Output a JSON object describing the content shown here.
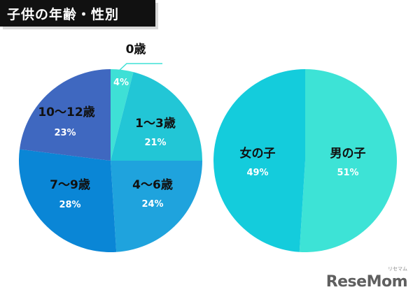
{
  "title": "子供の年齢・性別",
  "logo": "ReseMom",
  "logo_sub": "リセマム",
  "chart_data": [
    {
      "type": "pie",
      "name": "age",
      "categories": [
        "0歳",
        "1〜3歳",
        "4〜6歳",
        "7〜9歳",
        "10〜12歳"
      ],
      "values": [
        4,
        21,
        24,
        28,
        23
      ],
      "value_labels": [
        "4%",
        "21%",
        "24%",
        "28%",
        "23%"
      ],
      "colors": [
        "#3ee0d6",
        "#22c6d6",
        "#1fa3dd",
        "#0a86d6",
        "#3f68c0"
      ],
      "label_colors": [
        "#ffffff",
        "#ffffff",
        "#ffffff",
        "#ffffff",
        "#ffffff"
      ],
      "name_colors": [
        "#111111",
        "#111111",
        "#111111",
        "#111111",
        "#111111"
      ]
    },
    {
      "type": "pie",
      "name": "gender",
      "categories": [
        "男の子",
        "女の子"
      ],
      "values": [
        51,
        49
      ],
      "value_labels": [
        "51%",
        "49%"
      ],
      "colors": [
        "#3de3d6",
        "#14ccdc"
      ],
      "label_colors": [
        "#ffffff",
        "#ffffff"
      ],
      "name_colors": [
        "#111111",
        "#111111"
      ]
    }
  ]
}
